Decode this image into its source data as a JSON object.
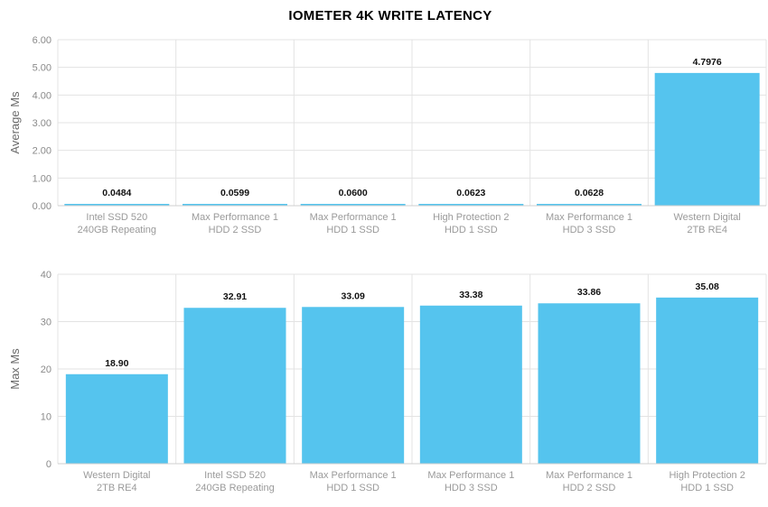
{
  "title": "IOMETER 4K WRITE LATENCY",
  "colors": {
    "bar": "#55c4ee",
    "grid": "#e3e3e3"
  },
  "chart_data": [
    {
      "type": "bar",
      "ylabel": "Average Ms",
      "ylim": [
        0,
        6
      ],
      "yticks": [
        "0.00",
        "1.00",
        "2.00",
        "3.00",
        "4.00",
        "5.00",
        "6.00"
      ],
      "categories": [
        [
          "Intel SSD 520",
          "240GB Repeating"
        ],
        [
          "Max Performance 1",
          "HDD 2 SSD"
        ],
        [
          "Max Performance 1",
          "HDD 1 SSD"
        ],
        [
          "High Protection 2",
          "HDD 1 SSD"
        ],
        [
          "Max Performance 1",
          "HDD 3 SSD"
        ],
        [
          "Western Digital",
          "2TB RE4"
        ]
      ],
      "values": [
        0.0484,
        0.0599,
        0.06,
        0.0623,
        0.0628,
        4.7976
      ],
      "labels": [
        "0.0484",
        "0.0599",
        "0.0600",
        "0.0623",
        "0.0628",
        "4.7976"
      ],
      "grid": true
    },
    {
      "type": "bar",
      "ylabel": "Max Ms",
      "ylim": [
        0,
        40
      ],
      "yticks": [
        "0",
        "10",
        "20",
        "30",
        "40"
      ],
      "categories": [
        [
          "Western Digital",
          "2TB RE4"
        ],
        [
          "Intel SSD 520",
          "240GB Repeating"
        ],
        [
          "Max Performance 1",
          "HDD 1 SSD"
        ],
        [
          "Max Performance 1",
          "HDD 3 SSD"
        ],
        [
          "Max Performance 1",
          "HDD 2 SSD"
        ],
        [
          "High Protection 2",
          "HDD 1 SSD"
        ]
      ],
      "values": [
        18.9,
        32.91,
        33.09,
        33.38,
        33.86,
        35.08
      ],
      "labels": [
        "18.90",
        "32.91",
        "33.09",
        "33.38",
        "33.86",
        "35.08"
      ],
      "grid": true
    }
  ]
}
